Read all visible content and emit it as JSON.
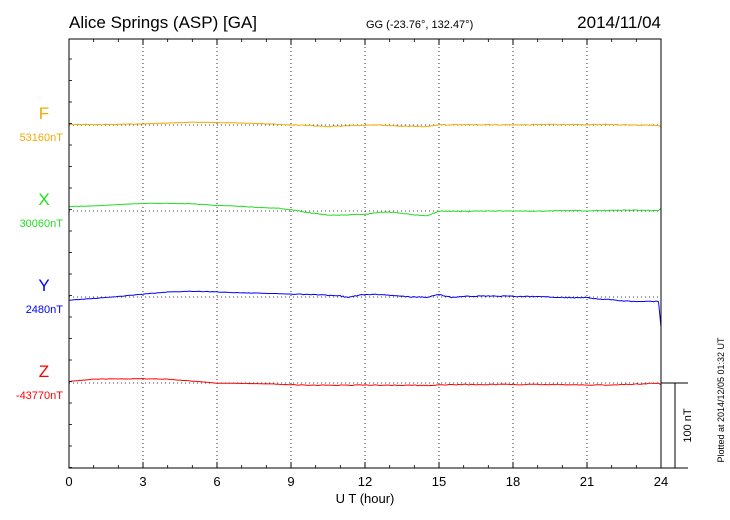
{
  "header": {
    "station": "Alice Springs (ASP)  [GA]",
    "coords": "GG (-23.76°, 132.47°)",
    "date": "2014/11/04"
  },
  "footer": {
    "plotted": "Plotted at 2014/12/05 01:32 UT",
    "scale_label": "100 nT"
  },
  "chart_data": {
    "type": "line",
    "xlabel": "U T (hour)",
    "ylabel": "",
    "xlim": [
      0,
      24
    ],
    "x_ticks": [
      "0",
      "3",
      "6",
      "9",
      "12",
      "15",
      "18",
      "21",
      "24"
    ],
    "grid": true,
    "scale_bar_nT": 100,
    "series": [
      {
        "name": "F",
        "baseline_label": "53160nT",
        "baseline_nT": 53160,
        "color": "#f5a800",
        "x": [
          0,
          1,
          2,
          3,
          4,
          5,
          6,
          7,
          8,
          9,
          10,
          10.5,
          11,
          11.5,
          12,
          12.5,
          13,
          13.5,
          14,
          14.5,
          15,
          16,
          17,
          18,
          19,
          20,
          21,
          22,
          23,
          24
        ],
        "y": [
          53166,
          53163,
          53165,
          53170,
          53176,
          53183,
          53181,
          53177,
          53170,
          53161,
          53153,
          53147,
          53150,
          53155,
          53157,
          53160,
          53156,
          53150,
          53150,
          53146,
          53163,
          53162,
          53163,
          53161,
          53164,
          53163,
          53164,
          53164,
          53158,
          53158
        ]
      },
      {
        "name": "X",
        "baseline_label": "30060nT",
        "baseline_nT": 30060,
        "color": "#22dd22",
        "x": [
          0,
          1,
          2,
          3,
          4,
          5,
          6,
          7,
          8,
          8.5,
          9,
          9.5,
          10,
          10.5,
          11,
          11.5,
          12,
          12.5,
          13,
          13.5,
          14,
          14.5,
          15,
          15.5,
          16,
          17,
          18,
          19,
          20,
          21,
          22,
          23,
          24
        ],
        "y": [
          30097,
          30103,
          30113,
          30124,
          30124,
          30120,
          30107,
          30098,
          30086,
          30083,
          30070,
          30053,
          30039,
          30027,
          30025,
          30030,
          30033,
          30046,
          30051,
          30042,
          30029,
          30018,
          30060,
          30058,
          30056,
          30060,
          30060,
          30059,
          30064,
          30062,
          30066,
          30066,
          30063
        ]
      },
      {
        "name": "Y",
        "baseline_label": "2480nT",
        "baseline_nT": 2480,
        "color": "#0000ff",
        "x": [
          0,
          1,
          2,
          3,
          4,
          5,
          6,
          7,
          8,
          9,
          10,
          11,
          11.3,
          11.8,
          12.5,
          13,
          13.5,
          14,
          14.5,
          15,
          15.5,
          16,
          17,
          18,
          19,
          20,
          20.5,
          21,
          21.5,
          22,
          22.5,
          23,
          24
        ],
        "y": [
          2454,
          2467,
          2484,
          2504,
          2521,
          2528,
          2523,
          2515,
          2510,
          2504,
          2499,
          2490,
          2475,
          2498,
          2502,
          2494,
          2486,
          2480,
          2479,
          2500,
          2477,
          2485,
          2488,
          2486,
          2484,
          2477,
          2474,
          2475,
          2461,
          2458,
          2447,
          2441,
          2445
        ]
      },
      {
        "name": "Z",
        "baseline_label": "-43770nT",
        "baseline_nT": -43770,
        "color": "#ff0000",
        "x": [
          0,
          0.5,
          1,
          2,
          3,
          4,
          5,
          6,
          7,
          8,
          9,
          10,
          11,
          12,
          13,
          14,
          14.5,
          15,
          16,
          17,
          18,
          19,
          20,
          21,
          22,
          23,
          24
        ],
        "y": [
          -43757,
          -43748,
          -43738,
          -43735,
          -43734,
          -43738,
          -43754,
          -43771,
          -43774,
          -43777,
          -43784,
          -43788,
          -43789,
          -43787,
          -43789,
          -43789,
          -43791,
          -43786,
          -43784,
          -43782,
          -43783,
          -43782,
          -43783,
          -43788,
          -43786,
          -43778,
          -43772
        ]
      }
    ]
  }
}
